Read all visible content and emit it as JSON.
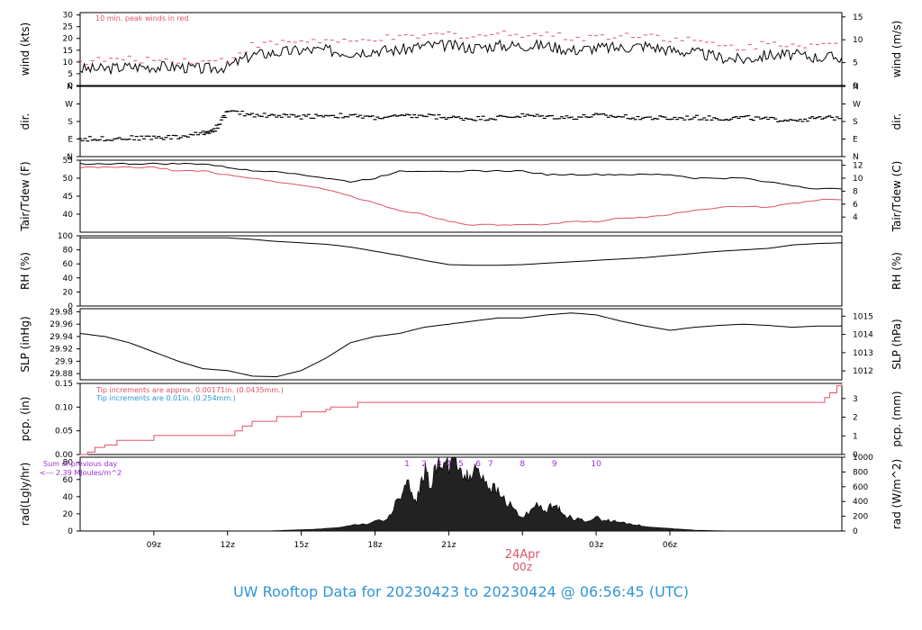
{
  "footer": "UW Rooftop Data for 20230423  to  20230424 @ 06:56:45  (UTC)",
  "colors": {
    "black": "#000000",
    "red": "#df536b",
    "blue": "#2e96d6",
    "purple": "#9b30d6"
  },
  "chart_data": [
    {
      "id": "wind",
      "type": "line",
      "ylabel": "wind (kts)",
      "ylabel_right": "wind (m/s)",
      "ylim": [
        0,
        31
      ],
      "yticks": [
        0,
        5,
        10,
        15,
        20,
        25,
        30
      ],
      "yticks_right": [
        0,
        5,
        10,
        15
      ],
      "yticks_right_values_kts": [
        0,
        9.72,
        19.44,
        29.16
      ],
      "annotation": "10 min. peak winds in red",
      "series": [
        {
          "color": "#000000",
          "hours": [
            0,
            1,
            2,
            3,
            4,
            5,
            6,
            7,
            8,
            9,
            10,
            11,
            12,
            13,
            14,
            15,
            16,
            17,
            18,
            19,
            20,
            21,
            22,
            23,
            24,
            25,
            26,
            27,
            28,
            29,
            30,
            31
          ],
          "values": [
            7,
            7,
            8,
            8,
            8,
            7,
            8,
            13,
            14,
            15,
            15,
            14,
            15,
            15,
            17,
            17,
            16,
            17,
            17,
            17,
            15,
            16,
            16,
            17,
            15,
            14,
            12,
            11,
            13,
            13,
            12,
            12
          ]
        },
        {
          "color": "#df536b",
          "hours": [
            0,
            1,
            2,
            3,
            4,
            5,
            6,
            7,
            8,
            9,
            10,
            11,
            12,
            13,
            14,
            15,
            16,
            17,
            18,
            19,
            20,
            21,
            22,
            23,
            24,
            25,
            26,
            27,
            28,
            29,
            30,
            31
          ],
          "values": [
            10,
            11,
            11,
            11,
            11,
            10,
            11,
            17,
            18,
            19,
            19,
            18,
            20,
            20,
            21,
            22,
            21,
            22,
            22,
            22,
            20,
            21,
            21,
            22,
            20,
            19,
            17,
            16,
            18,
            18,
            17,
            17
          ]
        }
      ]
    },
    {
      "id": "dir",
      "type": "scatter",
      "ylabel": "dir.",
      "ylabel_right": "dir.",
      "yticks_labels": [
        "N",
        "E",
        "S",
        "W",
        "N"
      ],
      "yticks_deg": [
        0,
        90,
        180,
        270,
        360
      ],
      "series": [
        {
          "color": "#000000",
          "hours": [
            0,
            1,
            2,
            3,
            4,
            5,
            5.5,
            6,
            7,
            8,
            9,
            10,
            11,
            12,
            13,
            14,
            15,
            16,
            17,
            18,
            19,
            20,
            21,
            22,
            23,
            24,
            25,
            26,
            27,
            28,
            29,
            30,
            31
          ],
          "values": [
            90,
            92,
            95,
            98,
            100,
            120,
            140,
            230,
            215,
            210,
            205,
            212,
            208,
            200,
            205,
            210,
            200,
            195,
            200,
            210,
            205,
            200,
            210,
            205,
            200,
            195,
            200,
            195,
            200,
            190,
            190,
            195,
            200
          ]
        }
      ]
    },
    {
      "id": "temp",
      "type": "line",
      "ylabel": "Tair/Tdew (F)",
      "ylabel_right": "Tair/Tdew (C)",
      "ylim": [
        35,
        55
      ],
      "yticks": [
        40,
        45,
        50,
        55
      ],
      "yticks_right": [
        4,
        6,
        8,
        10,
        12
      ],
      "series": [
        {
          "color": "#000000",
          "hours": [
            0,
            1,
            2,
            3,
            4,
            5,
            6,
            7,
            8,
            9,
            10,
            11,
            12,
            13,
            14,
            15,
            16,
            17,
            18,
            19,
            20,
            21,
            22,
            23,
            24,
            25,
            26,
            27,
            28,
            29,
            30,
            31
          ],
          "values": [
            54,
            54,
            54,
            54,
            54,
            54,
            53,
            52,
            52,
            51,
            50,
            49,
            50,
            52,
            52,
            52,
            52,
            52,
            52,
            51,
            51,
            51,
            51,
            51,
            51,
            50,
            50,
            50,
            49,
            48,
            47,
            47
          ]
        },
        {
          "color": "#df536b",
          "hours": [
            0,
            1,
            2,
            3,
            4,
            5,
            6,
            7,
            8,
            9,
            10,
            11,
            12,
            13,
            14,
            15,
            16,
            17,
            18,
            19,
            20,
            21,
            22,
            23,
            24,
            25,
            26,
            27,
            28,
            29,
            30,
            31
          ],
          "values": [
            53,
            53,
            53,
            53,
            52,
            52,
            51,
            50,
            49,
            48,
            47,
            45,
            43,
            41,
            40,
            38,
            37,
            37,
            37,
            37,
            38,
            38,
            39,
            39,
            40,
            41,
            42,
            42,
            42,
            43,
            44,
            44
          ]
        }
      ]
    },
    {
      "id": "rh",
      "type": "line",
      "ylabel": "RH (%)",
      "ylabel_right": "RH (%)",
      "ylim": [
        0,
        100
      ],
      "yticks": [
        0,
        20,
        40,
        60,
        80,
        100
      ],
      "series": [
        {
          "color": "#000000",
          "hours": [
            0,
            2,
            4,
            6,
            7,
            8,
            9,
            10,
            11,
            12,
            13,
            14,
            15,
            16,
            17,
            18,
            19,
            20,
            21,
            22,
            23,
            24,
            25,
            26,
            27,
            28,
            29,
            30,
            31
          ],
          "values": [
            97,
            97,
            97,
            97,
            95,
            92,
            90,
            88,
            84,
            78,
            72,
            65,
            59,
            58,
            58,
            59,
            61,
            63,
            65,
            67,
            69,
            72,
            75,
            78,
            80,
            82,
            87,
            89,
            90
          ]
        }
      ]
    },
    {
      "id": "slp",
      "type": "line",
      "ylabel": "SLP (inHg)",
      "ylabel_right": "SLP (hPa)",
      "ylim": [
        29.87,
        29.985
      ],
      "yticks": [
        29.88,
        29.9,
        29.92,
        29.94,
        29.96,
        29.98
      ],
      "yticks_right": [
        1012,
        1013,
        1014,
        1015
      ],
      "series": [
        {
          "color": "#000000",
          "hours": [
            0,
            1,
            2,
            3,
            4,
            5,
            6,
            7,
            8,
            9,
            10,
            11,
            12,
            13,
            14,
            15,
            16,
            17,
            18,
            19,
            20,
            21,
            22,
            23,
            24,
            25,
            26,
            27,
            28,
            29,
            30,
            31
          ],
          "values": [
            29.945,
            29.94,
            29.93,
            29.915,
            29.9,
            29.888,
            29.885,
            29.876,
            29.875,
            29.885,
            29.905,
            29.93,
            29.94,
            29.945,
            29.955,
            29.96,
            29.965,
            29.97,
            29.97,
            29.975,
            29.978,
            29.975,
            29.965,
            29.957,
            29.95,
            29.955,
            29.958,
            29.96,
            29.958,
            29.955,
            29.957,
            29.957
          ]
        }
      ]
    },
    {
      "id": "pcp",
      "type": "line",
      "ylabel": "pcp. (in)",
      "ylabel_right": "pcp. (mm)",
      "ylim": [
        0,
        0.15
      ],
      "yticks": [
        0,
        0.05,
        0.1,
        0.15
      ],
      "yticks_labels": [
        "0.00",
        "0.05",
        "0.10",
        "0.15"
      ],
      "yticks_right": [
        0,
        1,
        2,
        3
      ],
      "annotations": [
        {
          "text": "Tip increments are approx. 0.00171in. (0.0435mm.)",
          "color": "#df536b"
        },
        {
          "text": "Tip increments are 0.01in. (0.254mm.)",
          "color": "#2e96d6"
        }
      ],
      "series": [
        {
          "color": "#df536b",
          "hours": [
            0,
            0.3,
            0.6,
            1,
            1.5,
            3,
            6,
            6.3,
            6.6,
            7,
            8,
            9,
            10,
            10.2,
            11,
            11.3,
            12,
            12.5,
            13,
            30,
            30.3,
            30.5,
            30.8,
            31
          ],
          "values": [
            0,
            0.005,
            0.015,
            0.02,
            0.03,
            0.04,
            0.04,
            0.05,
            0.06,
            0.07,
            0.08,
            0.09,
            0.095,
            0.1,
            0.1,
            0.11,
            0.11,
            0.11,
            0.11,
            0.11,
            0.12,
            0.13,
            0.145,
            0.15
          ]
        }
      ]
    },
    {
      "id": "rad",
      "type": "area",
      "ylabel": "rad(Lgly/hr)",
      "ylabel_right": "rad (W/m^2)",
      "ylim": [
        0,
        86
      ],
      "yticks": [
        0,
        20,
        40,
        60,
        80
      ],
      "yticks_right": [
        0,
        200,
        400,
        600,
        800,
        1000
      ],
      "annotation_lines": [
        "Sum of previous day",
        "<--- 2.39 MJoules/m^2"
      ],
      "markers": [
        "1",
        "2",
        "3",
        "4",
        "5",
        "6",
        "7",
        "8",
        "9",
        "10"
      ],
      "marker_hours": [
        13.3,
        14,
        14.6,
        15,
        15.5,
        16.2,
        16.7,
        18,
        19.3,
        21
      ],
      "series": [
        {
          "color": "#000000",
          "hours": [
            7.5,
            8.5,
            9.5,
            10.5,
            11.5,
            12.5,
            13,
            13.3,
            13.7,
            14,
            14.3,
            14.6,
            14.9,
            15.2,
            15.5,
            15.8,
            16.2,
            16.6,
            17,
            17.5,
            18,
            18.5,
            19,
            19.3,
            19.6,
            20,
            20.5,
            21,
            21.5,
            22,
            22.5,
            23,
            24,
            25,
            26.5
          ],
          "values": [
            0,
            1,
            2,
            4,
            8,
            14,
            40,
            60,
            35,
            70,
            55,
            85,
            75,
            90,
            70,
            60,
            75,
            55,
            45,
            30,
            15,
            30,
            22,
            35,
            20,
            15,
            12,
            15,
            12,
            10,
            8,
            5,
            3,
            1,
            0
          ]
        }
      ]
    }
  ],
  "x_axis": {
    "ticks": [
      "09z",
      "12z",
      "15z",
      "18z",
      "21z",
      "00z",
      "03z",
      "06z"
    ],
    "tick_hours": [
      3,
      6,
      9,
      12,
      15,
      18,
      21,
      24
    ],
    "date_label": "24Apr"
  }
}
